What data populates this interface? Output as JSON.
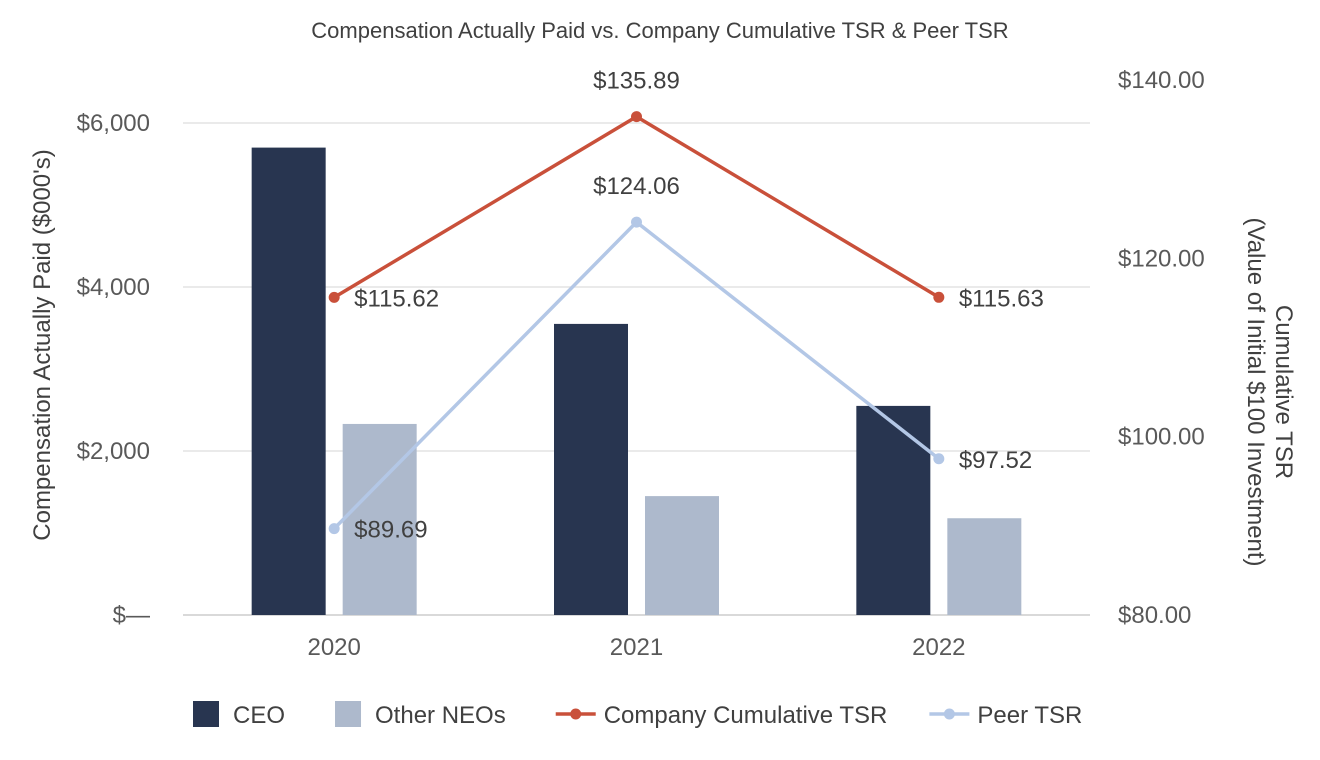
{
  "chart_data": {
    "type": "bar",
    "title": "Compensation Actually Paid vs. Company Cumulative TSR & Peer TSR",
    "categories": [
      "2020",
      "2021",
      "2022"
    ],
    "ylabel": "Compensation Actually Paid ($000's)",
    "y2label_line1": "Cumulative TSR",
    "y2label_line2": "(Value of Initial $100 Investment)",
    "ylim": [
      0,
      6000
    ],
    "y2lim": [
      80,
      140
    ],
    "yticks": [
      {
        "value": 0,
        "label": "$—"
      },
      {
        "value": 2000,
        "label": "$2,000"
      },
      {
        "value": 4000,
        "label": "$4,000"
      },
      {
        "value": 6000,
        "label": "$6,000"
      }
    ],
    "y2ticks": [
      {
        "value": 80,
        "label": "$80.00"
      },
      {
        "value": 100,
        "label": "$100.00"
      },
      {
        "value": 120,
        "label": "$120.00"
      },
      {
        "value": 140,
        "label": "$140.00"
      }
    ],
    "bar_series": [
      {
        "name": "CEO",
        "color": "#283550",
        "values": [
          5700,
          3550,
          2550
        ]
      },
      {
        "name": "Other NEOs",
        "color": "#adb9cc",
        "values": [
          2330,
          1450,
          1180
        ]
      }
    ],
    "line_series": [
      {
        "name": "Company Cumulative TSR",
        "color": "#c9503a",
        "values": [
          115.62,
          135.89,
          115.63
        ],
        "labels": [
          "$115.62",
          "$135.89",
          "$115.63"
        ],
        "label_positions": [
          "right",
          "above",
          "right"
        ]
      },
      {
        "name": "Peer TSR",
        "color": "#b3c7e6",
        "values": [
          89.69,
          124.06,
          97.52
        ],
        "labels": [
          "$89.69",
          "$124.06",
          "$97.52"
        ],
        "label_positions": [
          "right",
          "above",
          "right"
        ]
      }
    ],
    "legend_position": "bottom",
    "grid": true
  }
}
